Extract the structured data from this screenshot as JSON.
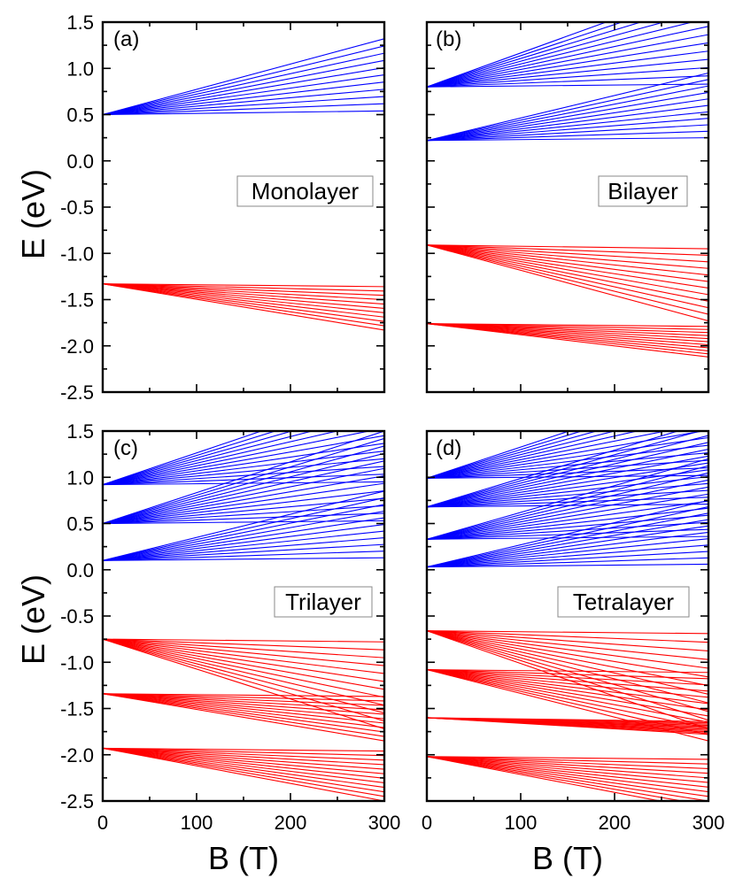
{
  "chart_data": [
    {
      "type": "line",
      "panel_label": "(a)",
      "name": "Monolayer",
      "xlim": [
        0,
        300
      ],
      "ylim": [
        -2.5,
        1.5
      ],
      "x_ticks": [
        "0",
        "100",
        "200",
        "300"
      ],
      "y_ticks": [
        "1.5",
        "1.0",
        "0.5",
        "0.0",
        "-0.5",
        "-1.0",
        "-1.5",
        "-2.0",
        "-2.5"
      ],
      "ylabel": "E (eV)",
      "xlabel": "",
      "show_x_tick_labels": false,
      "show_y_tick_labels": true,
      "levels": [
        {
          "series": "conduction",
          "color": "#0000ff",
          "start": 0.5,
          "end_min": 0.54,
          "end_max": 1.32,
          "count": 11
        },
        {
          "series": "valence",
          "color": "#ff0000",
          "start": -1.33,
          "end_min": -1.36,
          "end_max": -1.83,
          "count": 11
        }
      ]
    },
    {
      "type": "line",
      "panel_label": "(b)",
      "name": "Bilayer",
      "xlim": [
        0,
        300
      ],
      "ylim": [
        -2.5,
        1.5
      ],
      "x_ticks": [
        "0",
        "100",
        "200",
        "300"
      ],
      "y_ticks": [
        "1.5",
        "1.0",
        "0.5",
        "0.0",
        "-0.5",
        "-1.0",
        "-1.5",
        "-2.0",
        "-2.5"
      ],
      "ylabel": "",
      "xlabel": "",
      "show_x_tick_labels": false,
      "show_y_tick_labels": false,
      "levels": [
        {
          "series": "conduction",
          "color": "#0000ff",
          "start": 0.8,
          "end_min": 0.83,
          "end_max": 1.9,
          "count": 13
        },
        {
          "series": "conduction",
          "color": "#0000ff",
          "start": 0.22,
          "end_min": 0.25,
          "end_max": 0.95,
          "count": 11
        },
        {
          "series": "valence",
          "color": "#ff0000",
          "start": -0.91,
          "end_min": -0.95,
          "end_max": -1.73,
          "count": 12
        },
        {
          "series": "valence",
          "color": "#ff0000",
          "start": -1.76,
          "end_min": -1.79,
          "end_max": -2.12,
          "count": 11
        }
      ]
    },
    {
      "type": "line",
      "panel_label": "(c)",
      "name": "Trilayer",
      "xlim": [
        0,
        300
      ],
      "ylim": [
        -2.5,
        1.5
      ],
      "x_ticks": [
        "0",
        "100",
        "200",
        "300"
      ],
      "y_ticks": [
        "1.5",
        "1.0",
        "0.5",
        "0.0",
        "-0.5",
        "-1.0",
        "-1.5",
        "-2.0",
        "-2.5"
      ],
      "ylabel": "E (eV)",
      "xlabel": "B (T)",
      "show_x_tick_labels": true,
      "show_y_tick_labels": true,
      "levels": [
        {
          "series": "conduction",
          "color": "#0000ff",
          "start": 0.92,
          "end_min": 0.95,
          "end_max": 1.95,
          "count": 13
        },
        {
          "series": "conduction",
          "color": "#0000ff",
          "start": 0.5,
          "end_min": 0.53,
          "end_max": 1.5,
          "count": 13
        },
        {
          "series": "conduction",
          "color": "#0000ff",
          "start": 0.1,
          "end_min": 0.13,
          "end_max": 0.85,
          "count": 11
        },
        {
          "series": "valence",
          "color": "#ff0000",
          "start": -0.75,
          "end_min": -0.78,
          "end_max": -1.72,
          "count": 12
        },
        {
          "series": "valence",
          "color": "#ff0000",
          "start": -1.34,
          "end_min": -1.37,
          "end_max": -1.85,
          "count": 11
        },
        {
          "series": "valence",
          "color": "#ff0000",
          "start": -1.93,
          "end_min": -1.96,
          "end_max": -2.5,
          "count": 12
        }
      ]
    },
    {
      "type": "line",
      "panel_label": "(d)",
      "name": "Tetralayer",
      "xlim": [
        0,
        300
      ],
      "ylim": [
        -2.5,
        1.5
      ],
      "x_ticks": [
        "0",
        "100",
        "200",
        "300"
      ],
      "y_ticks": [
        "1.5",
        "1.0",
        "0.5",
        "0.0",
        "-0.5",
        "-1.0",
        "-1.5",
        "-2.0",
        "-2.5"
      ],
      "ylabel": "",
      "xlabel": "B (T)",
      "show_x_tick_labels": true,
      "show_y_tick_labels": false,
      "levels": [
        {
          "series": "conduction",
          "color": "#0000ff",
          "start": 0.99,
          "end_min": 1.02,
          "end_max": 2.0,
          "count": 13
        },
        {
          "series": "conduction",
          "color": "#0000ff",
          "start": 0.68,
          "end_min": 0.71,
          "end_max": 1.6,
          "count": 13
        },
        {
          "series": "conduction",
          "color": "#0000ff",
          "start": 0.33,
          "end_min": 0.36,
          "end_max": 1.2,
          "count": 12
        },
        {
          "series": "conduction",
          "color": "#0000ff",
          "start": 0.03,
          "end_min": 0.06,
          "end_max": 0.75,
          "count": 11
        },
        {
          "series": "valence",
          "color": "#ff0000",
          "start": -0.66,
          "end_min": -0.69,
          "end_max": -1.72,
          "count": 12
        },
        {
          "series": "valence",
          "color": "#ff0000",
          "start": -1.08,
          "end_min": -1.11,
          "end_max": -1.85,
          "count": 12
        },
        {
          "series": "valence",
          "color": "#ff0000",
          "start": -1.6,
          "end_min": -1.64,
          "end_max": -1.78,
          "count": 11
        },
        {
          "series": "valence",
          "color": "#ff0000",
          "start": -2.02,
          "end_min": -2.05,
          "end_max": -2.6,
          "count": 12
        }
      ]
    }
  ]
}
